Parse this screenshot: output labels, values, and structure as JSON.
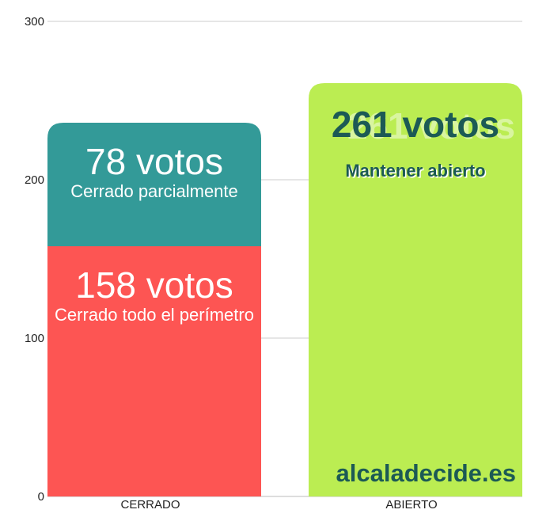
{
  "chart_data": {
    "type": "bar",
    "stacked": true,
    "categories": [
      "CERRADO",
      "ABIERTO"
    ],
    "yticks": [
      "0",
      "100",
      "200",
      "300"
    ],
    "ylim": [
      0,
      300
    ],
    "grid": true,
    "segments": [
      {
        "category": "CERRADO",
        "start": 0,
        "value": 158,
        "color": "#fd5553",
        "votes_label": "158 votos",
        "label": "Cerrado todo el perímetro"
      },
      {
        "category": "CERRADO",
        "start": 158,
        "value": 78,
        "color": "#339a98",
        "votes_label": "78 votos",
        "label": "Cerrado parcialmente"
      },
      {
        "category": "ABIERTO",
        "start": 0,
        "value": 261,
        "color": "#bbed52",
        "votes_label": "261 votos",
        "label": "Mantener abierto"
      }
    ],
    "watermark": "alcaladecide.es"
  },
  "colors": {
    "white_text": "#ffffff",
    "dark_text": "#1c5a55",
    "grid": "#cccccc",
    "axis": "#bbbbbb"
  }
}
